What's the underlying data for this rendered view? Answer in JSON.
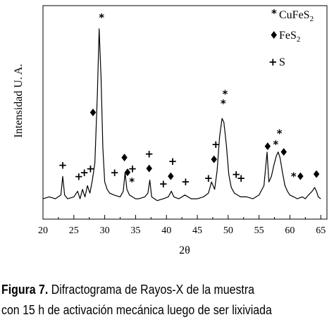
{
  "chart_data": {
    "type": "line",
    "title": "",
    "xlabel": "2θ",
    "ylabel": "Intensidad U. A.",
    "xlim": [
      20,
      66
    ],
    "ylim": [
      0,
      100
    ],
    "x_ticks": [
      20,
      25,
      30,
      35,
      40,
      45,
      50,
      55,
      60,
      65
    ],
    "grid": false,
    "legend_position": "top-right",
    "series": [
      {
        "x": [
          20.0,
          21.0,
          22.0,
          22.9,
          23.2,
          23.5,
          24.0,
          25.0,
          25.6,
          26.0,
          26.4,
          26.8,
          27.2,
          27.6,
          28.0,
          28.4,
          28.8,
          29.1,
          29.4,
          29.7,
          30.0,
          30.4,
          30.8,
          31.5,
          32.5,
          33.0,
          33.3,
          33.6,
          34.0,
          34.5,
          35.0,
          35.5,
          36.5,
          37.0,
          37.3,
          37.6,
          38.5,
          39.5,
          40.3,
          40.8,
          41.2,
          42.0,
          43.0,
          44.0,
          45.0,
          46.0,
          46.8,
          47.3,
          47.8,
          48.2,
          48.6,
          49.0,
          49.3,
          49.7,
          50.1,
          50.5,
          51.0,
          51.5,
          52.0,
          53.0,
          54.0,
          55.0,
          55.8,
          56.3,
          56.6,
          57.0,
          57.4,
          57.8,
          58.1,
          58.4,
          58.8,
          59.2,
          59.6,
          60.0,
          60.6,
          61.2,
          62.0,
          62.5,
          63.0,
          63.6,
          64.0,
          64.3,
          64.6,
          65.0
        ],
        "y": [
          3,
          4,
          3,
          5,
          15,
          5,
          3,
          4,
          7,
          3,
          8,
          4,
          10,
          6,
          13,
          22,
          58,
          94,
          68,
          30,
          12,
          8,
          6,
          5,
          4,
          7,
          17,
          8,
          5,
          4,
          3,
          3,
          4,
          6,
          13,
          4,
          2,
          3,
          4,
          7,
          4,
          3,
          5,
          3,
          3,
          4,
          6,
          12,
          8,
          18,
          36,
          46,
          44,
          32,
          16,
          9,
          6,
          5,
          4,
          4,
          3,
          5,
          10,
          28,
          12,
          15,
          21,
          26,
          28,
          25,
          17,
          10,
          7,
          5,
          4,
          3,
          4,
          3,
          5,
          7,
          9,
          7,
          4,
          3
        ]
      }
    ],
    "legend": [
      {
        "symbol": "*",
        "label": "CuFeS",
        "subscript": "2"
      },
      {
        "symbol": "♦",
        "label": "FeS",
        "subscript": "2"
      },
      {
        "symbol": "+",
        "label": "S",
        "subscript": ""
      }
    ],
    "annotations": [
      {
        "symbol": "*",
        "x": 29.5,
        "y": 100
      },
      {
        "symbol": "♦",
        "x": 28.1,
        "y": 49
      },
      {
        "symbol": "+",
        "x": 23.2,
        "y": 21
      },
      {
        "symbol": "+",
        "x": 25.8,
        "y": 15
      },
      {
        "symbol": "+",
        "x": 26.7,
        "y": 17
      },
      {
        "symbol": "+",
        "x": 27.7,
        "y": 19
      },
      {
        "symbol": "+",
        "x": 31.6,
        "y": 17
      },
      {
        "symbol": "♦",
        "x": 33.2,
        "y": 25
      },
      {
        "symbol": "♦",
        "x": 33.7,
        "y": 17
      },
      {
        "symbol": "*",
        "x": 34.4,
        "y": 12
      },
      {
        "symbol": "+",
        "x": 34.5,
        "y": 19
      },
      {
        "symbol": "+",
        "x": 37.2,
        "y": 27
      },
      {
        "symbol": "♦",
        "x": 37.2,
        "y": 19
      },
      {
        "symbol": "+",
        "x": 39.5,
        "y": 11
      },
      {
        "symbol": "♦",
        "x": 40.7,
        "y": 15
      },
      {
        "symbol": "+",
        "x": 41.0,
        "y": 23
      },
      {
        "symbol": "+",
        "x": 43.1,
        "y": 12
      },
      {
        "symbol": "+",
        "x": 46.8,
        "y": 14
      },
      {
        "symbol": "♦",
        "x": 47.7,
        "y": 24
      },
      {
        "symbol": "+",
        "x": 48.0,
        "y": 32
      },
      {
        "symbol": "*",
        "x": 49.2,
        "y": 54
      },
      {
        "symbol": "*",
        "x": 49.5,
        "y": 59
      },
      {
        "symbol": "+",
        "x": 51.3,
        "y": 16
      },
      {
        "symbol": "+",
        "x": 52.1,
        "y": 14
      },
      {
        "symbol": "♦",
        "x": 56.4,
        "y": 31
      },
      {
        "symbol": "*",
        "x": 57.7,
        "y": 32
      },
      {
        "symbol": "*",
        "x": 58.3,
        "y": 38
      },
      {
        "symbol": "♦",
        "x": 59.0,
        "y": 28
      },
      {
        "symbol": "*",
        "x": 60.6,
        "y": 15
      },
      {
        "symbol": "♦",
        "x": 61.7,
        "y": 15
      },
      {
        "symbol": "♦",
        "x": 64.3,
        "y": 16
      }
    ]
  },
  "caption": {
    "label": "Figura 7.",
    "line1": "Difractograma de Rayos-X de la muestra",
    "line2": "con 15 h de activación mecánica luego de ser lixiviada"
  }
}
